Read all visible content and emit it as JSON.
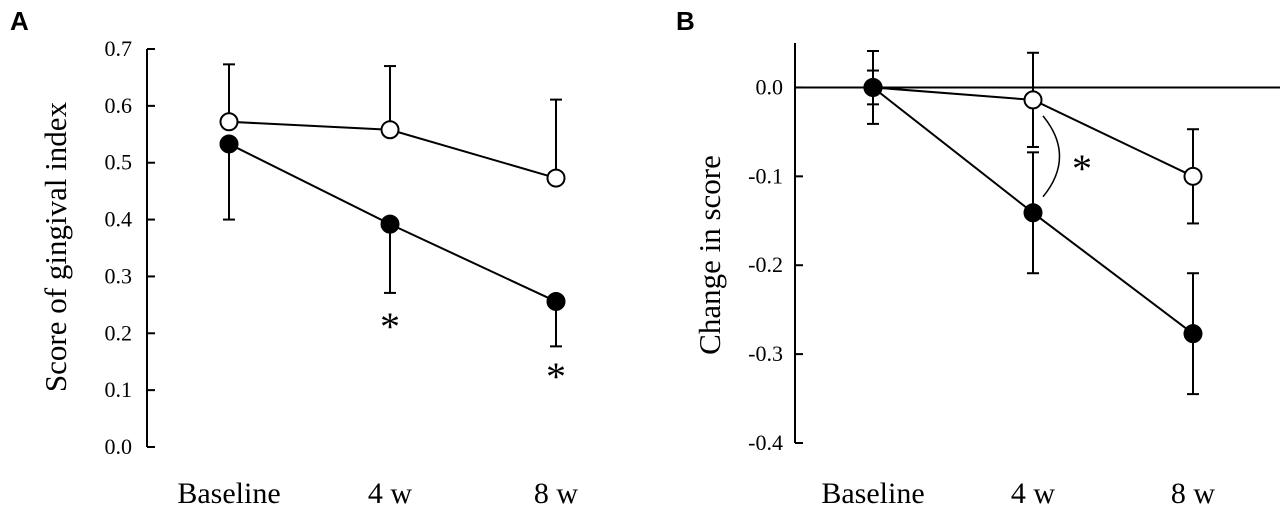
{
  "chart_data": [
    {
      "panel": "A",
      "type": "line",
      "title": "",
      "xlabel": "",
      "ylabel": "Score of gingival index",
      "categories": [
        "Baseline",
        "4 w",
        "8 w"
      ],
      "ylim": [
        0.0,
        0.7
      ],
      "yticks": [
        "0.0",
        "0.1",
        "0.2",
        "0.3",
        "0.4",
        "0.5",
        "0.6",
        "0.7"
      ],
      "grid": false,
      "series": [
        {
          "marker": "open-circle",
          "values": [
            0.572,
            0.558,
            0.473
          ],
          "error": [
            0.101,
            0.112,
            0.138
          ],
          "error_direction": "up"
        },
        {
          "marker": "filled-circle",
          "values": [
            0.533,
            0.392,
            0.256
          ],
          "error": [
            0.133,
            0.121,
            0.079
          ],
          "error_direction": "down"
        }
      ],
      "annotations": [
        {
          "text": "*",
          "category": "4 w"
        },
        {
          "text": "*",
          "category": "8 w"
        }
      ]
    },
    {
      "panel": "B",
      "type": "line",
      "title": "",
      "xlabel": "",
      "ylabel": "Change in score",
      "categories": [
        "Baseline",
        "4 w",
        "8 w"
      ],
      "ylim": [
        -0.4,
        0.05
      ],
      "yticks": [
        "0.0",
        "-0.1",
        "-0.2",
        "-0.3",
        "-0.4"
      ],
      "grid": false,
      "zero_line": true,
      "series": [
        {
          "marker": "open-circle",
          "values": [
            0.0,
            -0.014,
            -0.1
          ],
          "error": [
            0.019,
            0.053,
            0.053
          ],
          "error_direction": "both"
        },
        {
          "marker": "filled-circle",
          "values": [
            0.0,
            -0.141,
            -0.277
          ],
          "error": [
            0.041,
            0.068,
            0.068
          ],
          "error_direction": "both"
        }
      ],
      "annotations": [
        {
          "text": "*",
          "category": "4 w"
        }
      ]
    }
  ]
}
